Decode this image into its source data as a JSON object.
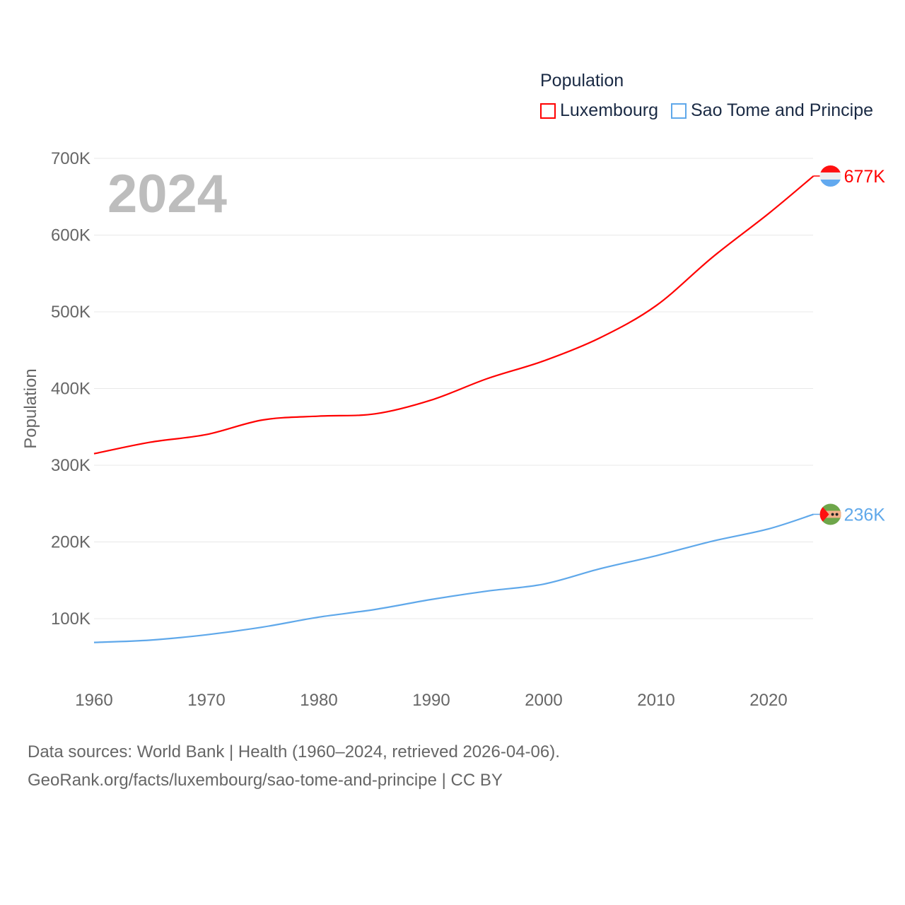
{
  "chart_data": {
    "type": "line",
    "title": "",
    "year_label": "2024",
    "xlabel": "",
    "ylabel": "Population",
    "xlim": [
      1960,
      2024
    ],
    "ylim": [
      0,
      700000
    ],
    "x_ticks": [
      1960,
      1970,
      1980,
      1990,
      2000,
      2010,
      2020
    ],
    "x_tick_labels": [
      "1960",
      "1970",
      "1980",
      "1990",
      "2000",
      "2010",
      "2020"
    ],
    "y_ticks": [
      100000,
      200000,
      300000,
      400000,
      500000,
      600000,
      700000
    ],
    "y_tick_labels": [
      "100K",
      "200K",
      "300K",
      "400K",
      "500K",
      "600K",
      "700K"
    ],
    "grid": true,
    "legend": {
      "title": "Population",
      "placement": "top-right"
    },
    "x": [
      1960,
      1965,
      1970,
      1975,
      1980,
      1985,
      1990,
      1995,
      2000,
      2005,
      2010,
      2015,
      2020,
      2024
    ],
    "series": [
      {
        "name": "Luxembourg",
        "color": "#ff0000",
        "end_label": "677K",
        "flag": "luxembourg-flag",
        "values": [
          315000,
          330000,
          340000,
          359000,
          364000,
          367000,
          385000,
          413000,
          436000,
          466000,
          508000,
          571000,
          628000,
          677000
        ]
      },
      {
        "name": "Sao Tome and Principe",
        "color": "#5fa8ea",
        "end_label": "236K",
        "flag": "sao-tome-flag",
        "values": [
          69000,
          72000,
          79000,
          89000,
          102000,
          112000,
          125000,
          136000,
          145000,
          165000,
          182000,
          201000,
          217000,
          236000
        ]
      }
    ]
  },
  "footer": {
    "line1": "Data sources: World Bank | Health (1960–2024, retrieved 2026-04-06).",
    "line2": "GeoRank.org/facts/luxembourg/sao-tome-and-principe | CC BY"
  }
}
